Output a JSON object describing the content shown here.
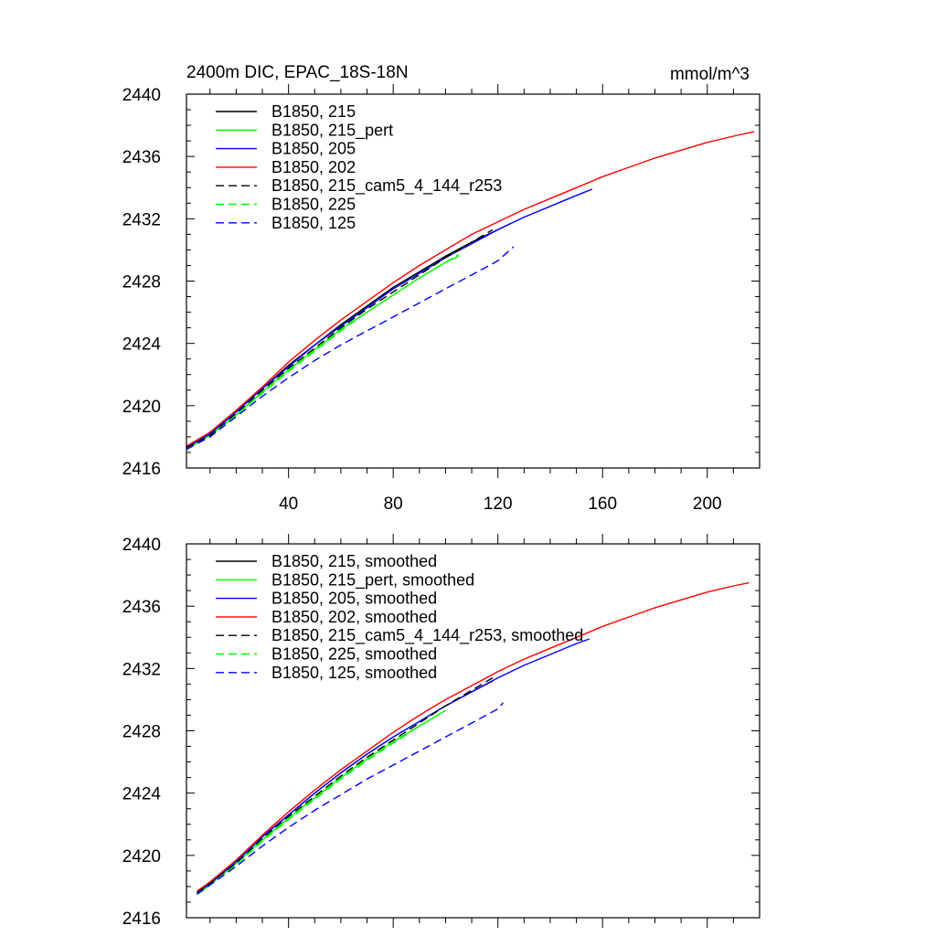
{
  "chart_data": [
    {
      "type": "line",
      "title": "2400m DIC, EPAC_18S-18N",
      "units": "mmol/m^3",
      "xlim": [
        1,
        220
      ],
      "ylim": [
        2416,
        2440
      ],
      "x_ticks": [
        40,
        80,
        120,
        160,
        200
      ],
      "x_tick_labels": [
        "40",
        "80",
        "120",
        "160",
        "200"
      ],
      "y_ticks": [
        2416,
        2420,
        2424,
        2428,
        2432,
        2436,
        2440
      ],
      "y_tick_labels": [
        "2416",
        "2420",
        "2424",
        "2428",
        "2432",
        "2436",
        "2440"
      ],
      "legend_position": "top-left",
      "series": [
        {
          "name": "B1850, 215",
          "color": "#000000",
          "dash": "solid",
          "x": [
            1,
            10,
            20,
            30,
            40,
            50,
            60,
            70,
            80,
            90,
            100,
            110,
            120,
            125
          ],
          "y": [
            2417.3,
            2418.2,
            2419.6,
            2421.1,
            2422.6,
            2423.9,
            2425.2,
            2426.4,
            2427.6,
            2428.6,
            2429.6,
            2430.5,
            2431.3,
            2431.7
          ]
        },
        {
          "name": "B1850, 215_pert",
          "color": "#00ff00",
          "dash": "solid",
          "x": [
            1,
            10,
            20,
            30,
            40,
            50,
            60,
            70,
            80,
            90,
            100,
            105
          ],
          "y": [
            2417.2,
            2418.1,
            2419.4,
            2420.9,
            2422.3,
            2423.6,
            2424.9,
            2426.0,
            2427.1,
            2428.2,
            2429.2,
            2429.6
          ]
        },
        {
          "name": "B1850, 205",
          "color": "#0000ff",
          "dash": "solid",
          "x": [
            1,
            10,
            20,
            30,
            40,
            50,
            60,
            70,
            80,
            90,
            100,
            110,
            120,
            130,
            140,
            150,
            156
          ],
          "y": [
            2417.3,
            2418.2,
            2419.6,
            2421.1,
            2422.5,
            2423.9,
            2425.1,
            2426.3,
            2427.5,
            2428.5,
            2429.5,
            2430.4,
            2431.3,
            2432.1,
            2432.8,
            2433.5,
            2433.9
          ]
        },
        {
          "name": "B1850, 202",
          "color": "#ff0000",
          "dash": "solid",
          "x": [
            1,
            10,
            20,
            30,
            40,
            50,
            60,
            70,
            80,
            90,
            100,
            110,
            120,
            130,
            140,
            150,
            160,
            170,
            180,
            190,
            200,
            210,
            218
          ],
          "y": [
            2417.4,
            2418.3,
            2419.7,
            2421.2,
            2422.8,
            2424.2,
            2425.5,
            2426.7,
            2427.9,
            2429.0,
            2430.0,
            2431.0,
            2431.8,
            2432.6,
            2433.3,
            2434.0,
            2434.7,
            2435.3,
            2435.9,
            2436.4,
            2436.9,
            2437.3,
            2437.6
          ]
        },
        {
          "name": "B1850, 215_cam5_4_144_r253",
          "color": "#000000",
          "dash": "dashed",
          "x": [
            1,
            10,
            20,
            30,
            40,
            50,
            60,
            70,
            80,
            90,
            100,
            110,
            118
          ],
          "y": [
            2417.3,
            2418.1,
            2419.5,
            2421.0,
            2422.4,
            2423.7,
            2425.0,
            2426.2,
            2427.3,
            2428.4,
            2429.5,
            2430.5,
            2431.3
          ]
        },
        {
          "name": "B1850, 225",
          "color": "#00ff00",
          "dash": "dashed",
          "x": [
            1,
            10,
            20,
            30,
            40,
            50,
            60,
            70,
            80,
            90,
            100,
            105
          ],
          "y": [
            2417.2,
            2418.0,
            2419.4,
            2420.8,
            2422.2,
            2423.5,
            2424.8,
            2426.0,
            2427.1,
            2428.2,
            2429.2,
            2429.7
          ]
        },
        {
          "name": "B1850, 125",
          "color": "#0000ff",
          "dash": "dashed",
          "x": [
            1,
            10,
            20,
            30,
            40,
            50,
            60,
            70,
            80,
            90,
            100,
            110,
            120,
            126
          ],
          "y": [
            2417.2,
            2418.0,
            2419.3,
            2420.6,
            2421.8,
            2422.9,
            2423.9,
            2424.8,
            2425.7,
            2426.6,
            2427.5,
            2428.4,
            2429.3,
            2430.2
          ]
        }
      ]
    },
    {
      "type": "line",
      "title": "",
      "xlim": [
        1,
        220
      ],
      "ylim": [
        2416,
        2440
      ],
      "x_ticks": [
        40,
        80,
        120,
        160,
        200
      ],
      "y_ticks": [
        2416,
        2420,
        2424,
        2428,
        2432,
        2436,
        2440
      ],
      "y_tick_labels": [
        "2416",
        "2420",
        "2424",
        "2428",
        "2432",
        "2436",
        "2440"
      ],
      "legend_position": "top-left",
      "series": [
        {
          "name": "B1850, 215, smoothed",
          "color": "#000000",
          "dash": "solid",
          "x": [
            5,
            10,
            20,
            30,
            40,
            50,
            60,
            70,
            80,
            90,
            100,
            110,
            118
          ],
          "y": [
            2417.6,
            2418.2,
            2419.6,
            2421.2,
            2422.6,
            2424.0,
            2425.3,
            2426.5,
            2427.6,
            2428.6,
            2429.6,
            2430.5,
            2431.2
          ]
        },
        {
          "name": "B1850, 215_pert, smoothed",
          "color": "#00ff00",
          "dash": "solid",
          "x": [
            5,
            10,
            20,
            30,
            40,
            50,
            60,
            70,
            80,
            90,
            100
          ],
          "y": [
            2417.5,
            2418.1,
            2419.5,
            2421.0,
            2422.4,
            2423.7,
            2425.0,
            2426.2,
            2427.3,
            2428.3,
            2429.3
          ]
        },
        {
          "name": "B1850, 205, smoothed",
          "color": "#0000ff",
          "dash": "solid",
          "x": [
            5,
            10,
            20,
            30,
            40,
            50,
            60,
            70,
            80,
            90,
            100,
            110,
            120,
            130,
            140,
            150,
            155
          ],
          "y": [
            2417.6,
            2418.2,
            2419.6,
            2421.2,
            2422.6,
            2424.0,
            2425.3,
            2426.5,
            2427.6,
            2428.6,
            2429.6,
            2430.5,
            2431.4,
            2432.2,
            2432.9,
            2433.6,
            2433.9
          ]
        },
        {
          "name": "B1850, 202, smoothed",
          "color": "#ff0000",
          "dash": "solid",
          "x": [
            5,
            10,
            20,
            30,
            40,
            50,
            60,
            70,
            80,
            90,
            100,
            110,
            120,
            130,
            140,
            150,
            160,
            170,
            180,
            190,
            200,
            210,
            216
          ],
          "y": [
            2417.7,
            2418.3,
            2419.7,
            2421.3,
            2422.8,
            2424.2,
            2425.5,
            2426.7,
            2427.9,
            2429.0,
            2430.0,
            2430.9,
            2431.8,
            2432.6,
            2433.3,
            2434.0,
            2434.7,
            2435.3,
            2435.9,
            2436.4,
            2436.9,
            2437.3,
            2437.5
          ]
        },
        {
          "name": "B1850, 215_cam5_4_144_r253, smoothed",
          "color": "#000000",
          "dash": "dashed",
          "x": [
            5,
            10,
            20,
            30,
            40,
            50,
            60,
            70,
            80,
            90,
            100,
            110,
            118
          ],
          "y": [
            2417.6,
            2418.2,
            2419.5,
            2421.1,
            2422.5,
            2423.8,
            2425.1,
            2426.3,
            2427.4,
            2428.5,
            2429.6,
            2430.6,
            2431.4
          ]
        },
        {
          "name": "B1850, 225, smoothed",
          "color": "#00ff00",
          "dash": "dashed",
          "x": [
            5,
            10,
            20,
            30,
            40,
            50,
            60,
            70,
            80,
            90,
            100
          ],
          "y": [
            2417.5,
            2418.1,
            2419.4,
            2420.9,
            2422.3,
            2423.6,
            2424.9,
            2426.1,
            2427.2,
            2428.3,
            2429.3
          ]
        },
        {
          "name": "B1850, 125, smoothed",
          "color": "#0000ff",
          "dash": "dashed",
          "x": [
            5,
            10,
            20,
            30,
            40,
            50,
            60,
            70,
            80,
            90,
            100,
            110,
            120,
            122
          ],
          "y": [
            2417.5,
            2418.1,
            2419.3,
            2420.6,
            2421.8,
            2422.9,
            2423.9,
            2424.9,
            2425.8,
            2426.7,
            2427.6,
            2428.5,
            2429.4,
            2429.8
          ]
        }
      ]
    }
  ]
}
